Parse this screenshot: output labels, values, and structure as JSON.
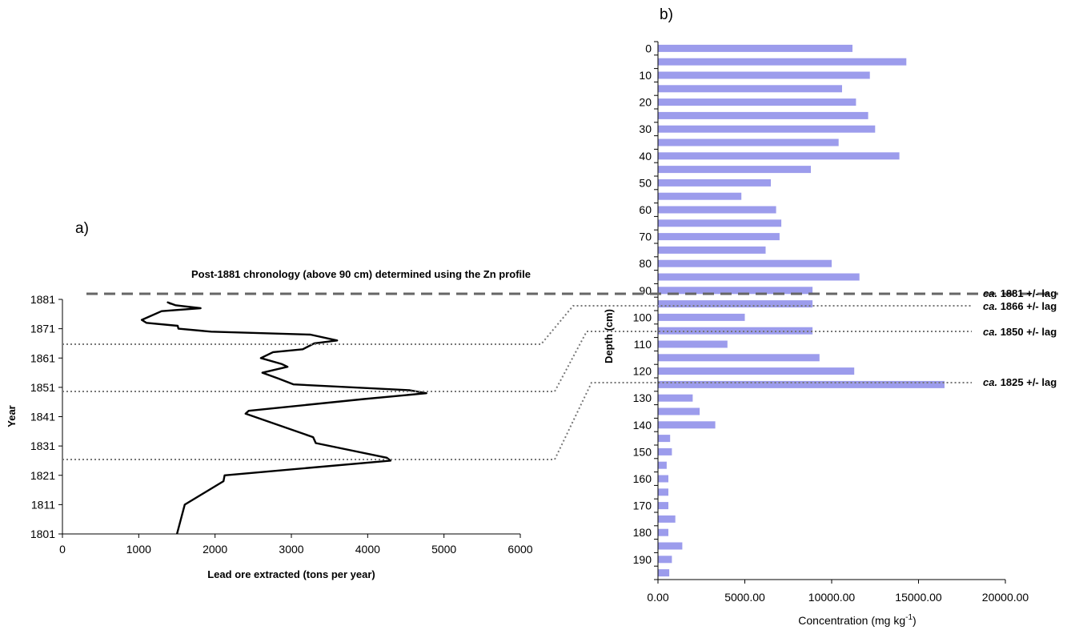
{
  "chart_data": [
    {
      "panel_label": "a)",
      "type": "line",
      "title": "Post-1881 chronology (above 90 cm) determined using the Zn profile",
      "xlabel": "Lead ore extracted (tons per year)",
      "ylabel": "Year",
      "xlim": [
        0,
        6000
      ],
      "ylim": [
        1801,
        1881
      ],
      "x_ticks": [
        "0",
        "1000",
        "2000",
        "3000",
        "4000",
        "5000",
        "6000"
      ],
      "y_ticks": [
        "1881",
        "1871",
        "1861",
        "1851",
        "1841",
        "1831",
        "1821",
        "1811",
        "1801"
      ],
      "series": [
        {
          "points": [
            [
              1501,
              1801
            ],
            [
              1603,
              1811
            ],
            [
              2110,
              1819
            ],
            [
              2125,
              1821
            ],
            [
              4300,
              1826
            ],
            [
              4250,
              1827
            ],
            [
              3320,
              1832
            ],
            [
              3285,
              1834
            ],
            [
              2400,
              1842
            ],
            [
              2440,
              1843
            ],
            [
              3950,
              1847
            ],
            [
              4770,
              1849
            ],
            [
              4550,
              1850
            ],
            [
              3030,
              1852
            ],
            [
              2830,
              1854
            ],
            [
              2620,
              1856
            ],
            [
              2950,
              1858
            ],
            [
              2870,
              1859
            ],
            [
              2600,
              1861
            ],
            [
              2760,
              1863
            ],
            [
              3150,
              1864
            ],
            [
              3300,
              1866
            ],
            [
              3600,
              1867
            ],
            [
              3250,
              1869
            ],
            [
              1950,
              1870
            ],
            [
              1520,
              1871
            ],
            [
              1510,
              1872
            ],
            [
              1100,
              1873
            ],
            [
              1040,
              1874
            ],
            [
              1300,
              1877
            ],
            [
              1810,
              1878
            ],
            [
              1480,
              1879
            ],
            [
              1380,
              1880
            ],
            [
              1420,
              1879.5
            ]
          ]
        }
      ]
    },
    {
      "panel_label": "b)",
      "type": "bar",
      "orientation": "horizontal",
      "xlabel_main": "Concentration (mg kg",
      "xlabel_sup": "-1",
      "xlabel_end": ")",
      "ylabel": "Depth (cm)",
      "xlim": [
        0,
        20000
      ],
      "x_ticks": [
        "0.00",
        "5000.00",
        "10000.00",
        "15000.00",
        "20000.00"
      ],
      "y_ticks": [
        "0",
        "10",
        "20",
        "30",
        "40",
        "50",
        "60",
        "70",
        "80",
        "90",
        "100",
        "110",
        "120",
        "130",
        "140",
        "150",
        "160",
        "170",
        "180",
        "190"
      ],
      "bar_color": "#9c9cec",
      "categories": [
        0,
        5,
        10,
        15,
        20,
        25,
        30,
        35,
        40,
        45,
        50,
        55,
        60,
        65,
        70,
        75,
        80,
        85,
        90,
        95,
        100,
        105,
        110,
        115,
        120,
        125,
        130,
        135,
        140,
        145,
        150,
        155,
        160,
        165,
        170,
        175,
        180,
        185,
        190,
        195
      ],
      "values": [
        11200,
        14300,
        12200,
        10600,
        11400,
        12100,
        12500,
        10400,
        13900,
        8800,
        6500,
        4800,
        6800,
        7100,
        7000,
        6200,
        10000,
        11600,
        8900,
        8900,
        5000,
        8900,
        4000,
        9300,
        11300,
        16500,
        2000,
        2400,
        3300,
        700,
        800,
        500,
        600,
        600,
        600,
        1000,
        600,
        1400,
        800,
        650
      ]
    }
  ],
  "annotations": [
    {
      "italic": "ca.",
      "rest": " 1881 +/- lag"
    },
    {
      "italic": "ca.",
      "rest": " 1866 +/- lag"
    },
    {
      "italic": "ca.",
      "rest": " 1850 +/- lag"
    },
    {
      "italic": "ca.",
      "rest": " 1825 +/- lag"
    }
  ]
}
